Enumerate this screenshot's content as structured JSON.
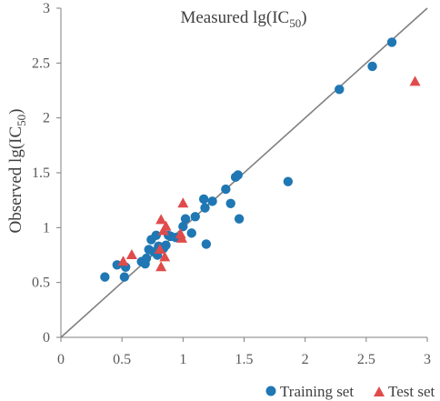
{
  "chart_data": {
    "type": "scatter",
    "title": "",
    "xlabel": {
      "main": "Measured lg(IC",
      "sub": "50",
      "end": ")"
    },
    "ylabel": {
      "main": "Observed lg(IC",
      "sub": "50",
      "end": ")"
    },
    "xlim": [
      0,
      3
    ],
    "ylim": [
      0,
      3
    ],
    "xticks": [
      "0",
      "0.5",
      "1",
      "1.5",
      "2",
      "2.5",
      "3"
    ],
    "yticks": [
      "0",
      "0.5",
      "1",
      "1.5",
      "2",
      "2.5",
      "3"
    ],
    "grid": false,
    "legend_position": "bottom-right",
    "reference_line": {
      "type": "y=x",
      "color": "#808080"
    },
    "series": [
      {
        "name": "Training set",
        "marker": "circle",
        "color": "#1f77b4",
        "points": [
          [
            0.36,
            0.55
          ],
          [
            0.46,
            0.66
          ],
          [
            0.52,
            0.55
          ],
          [
            0.53,
            0.64
          ],
          [
            0.66,
            0.69
          ],
          [
            0.69,
            0.67
          ],
          [
            0.7,
            0.72
          ],
          [
            0.72,
            0.8
          ],
          [
            0.74,
            0.89
          ],
          [
            0.76,
            0.78
          ],
          [
            0.78,
            0.93
          ],
          [
            0.79,
            0.75
          ],
          [
            0.8,
            0.83
          ],
          [
            0.84,
            0.81
          ],
          [
            0.86,
            0.84
          ],
          [
            0.88,
            0.93
          ],
          [
            0.9,
            0.92
          ],
          [
            0.94,
            0.91
          ],
          [
            1.0,
            1.01
          ],
          [
            1.02,
            1.08
          ],
          [
            1.07,
            0.95
          ],
          [
            1.1,
            1.1
          ],
          [
            1.17,
            1.26
          ],
          [
            1.18,
            1.18
          ],
          [
            1.19,
            0.85
          ],
          [
            1.24,
            1.24
          ],
          [
            1.35,
            1.35
          ],
          [
            1.39,
            1.22
          ],
          [
            1.43,
            1.46
          ],
          [
            1.45,
            1.48
          ],
          [
            1.46,
            1.08
          ],
          [
            1.86,
            1.42
          ],
          [
            2.28,
            2.26
          ],
          [
            2.55,
            2.47
          ],
          [
            2.71,
            2.69
          ]
        ]
      },
      {
        "name": "Test set",
        "marker": "triangle",
        "color": "#e04b4b",
        "points": [
          [
            0.51,
            0.69
          ],
          [
            0.58,
            0.75
          ],
          [
            0.81,
            0.8
          ],
          [
            0.82,
            0.64
          ],
          [
            0.82,
            1.07
          ],
          [
            0.84,
            0.97
          ],
          [
            0.85,
            0.73
          ],
          [
            0.86,
            1.01
          ],
          [
            0.98,
            0.94
          ],
          [
            0.99,
            0.9
          ],
          [
            1.0,
            1.22
          ],
          [
            2.9,
            2.33
          ]
        ]
      }
    ]
  }
}
